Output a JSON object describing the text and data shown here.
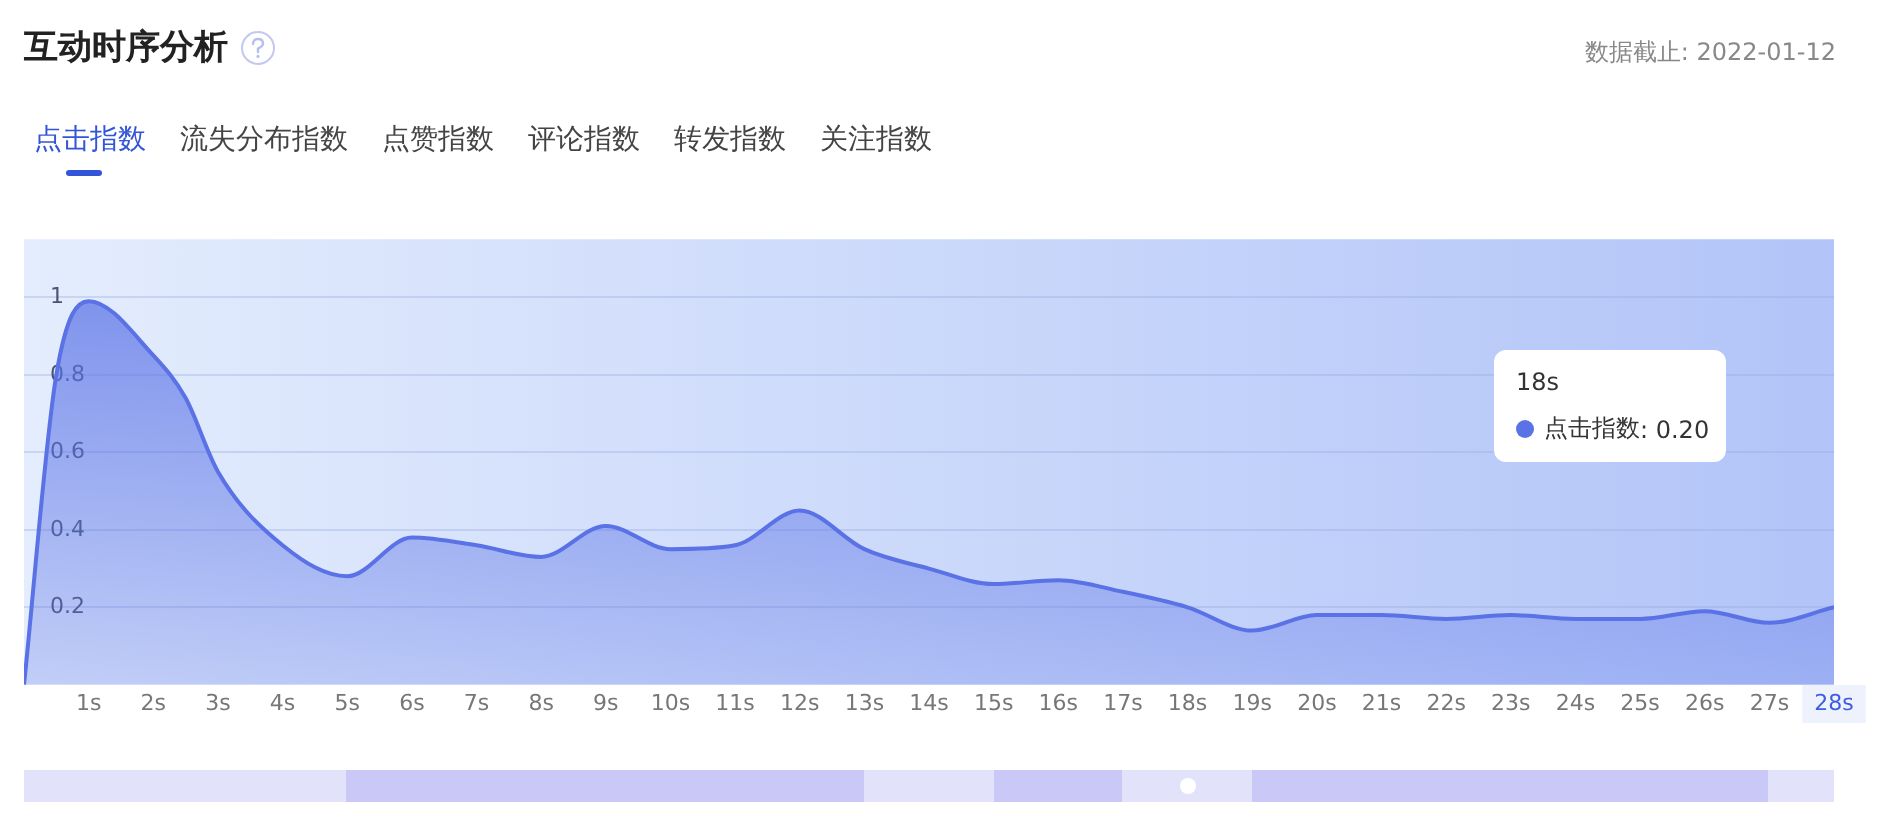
{
  "chart_data": {
    "type": "area",
    "title": "互动时序分析",
    "annotations": [
      "数据截止: 2022-01-12",
      "点击指数",
      "流失分布指数",
      "点赞指数",
      "评论指数",
      "转发指数",
      "关注指数",
      "18s",
      ": 0.20"
    ],
    "x": [
      0,
      0.5,
      1,
      2,
      2.5,
      3,
      4,
      5,
      6,
      7,
      8,
      9,
      10,
      11,
      12,
      13,
      14,
      15,
      16,
      17,
      18,
      19,
      20,
      21,
      22,
      23,
      24,
      25,
      26,
      27,
      28
    ],
    "series": [
      {
        "name": "点击指数",
        "color": "#5a72e6",
        "values": [
          0,
          0.8,
          0.99,
          0.85,
          0.74,
          0.55,
          0.36,
          0.28,
          0.38,
          0.36,
          0.33,
          0.41,
          0.35,
          0.36,
          0.45,
          0.35,
          0.3,
          0.26,
          0.27,
          0.24,
          0.2,
          0.14,
          0.18,
          0.18,
          0.17,
          0.18,
          0.17,
          0.17,
          0.19,
          0.16,
          0.2
        ]
      }
    ],
    "xlim": [
      0,
      28
    ],
    "xticks": [
      {
        "value": 1,
        "label": "1s"
      },
      {
        "value": 2,
        "label": "2s"
      },
      {
        "value": 3,
        "label": "3s"
      },
      {
        "value": 4,
        "label": "4s"
      },
      {
        "value": 5,
        "label": "5s"
      },
      {
        "value": 6,
        "label": "6s"
      },
      {
        "value": 7,
        "label": "7s"
      },
      {
        "value": 8,
        "label": "8s"
      },
      {
        "value": 9,
        "label": "9s"
      },
      {
        "value": 10,
        "label": "10s"
      },
      {
        "value": 11,
        "label": "11s"
      },
      {
        "value": 12,
        "label": "12s"
      },
      {
        "value": 13,
        "label": "13s"
      },
      {
        "value": 14,
        "label": "14s"
      },
      {
        "value": 15,
        "label": "15s"
      },
      {
        "value": 16,
        "label": "16s"
      },
      {
        "value": 17,
        "label": "17s"
      },
      {
        "value": 18,
        "label": "18s"
      },
      {
        "value": 19,
        "label": "19s"
      },
      {
        "value": 20,
        "label": "20s"
      },
      {
        "value": 21,
        "label": "21s"
      },
      {
        "value": 22,
        "label": "22s"
      },
      {
        "value": 23,
        "label": "23s"
      },
      {
        "value": 24,
        "label": "24s"
      },
      {
        "value": 25,
        "label": "25s"
      },
      {
        "value": 26,
        "label": "26s"
      },
      {
        "value": 27,
        "label": "27s"
      },
      {
        "value": 28,
        "label": "28s"
      }
    ],
    "ylim": [
      0,
      1.15
    ],
    "yticks": [
      0.2,
      0.4,
      0.6,
      0.8,
      1
    ],
    "grid": "y",
    "legend": "top right",
    "marker": "none",
    "line_style": "solid"
  }
}
